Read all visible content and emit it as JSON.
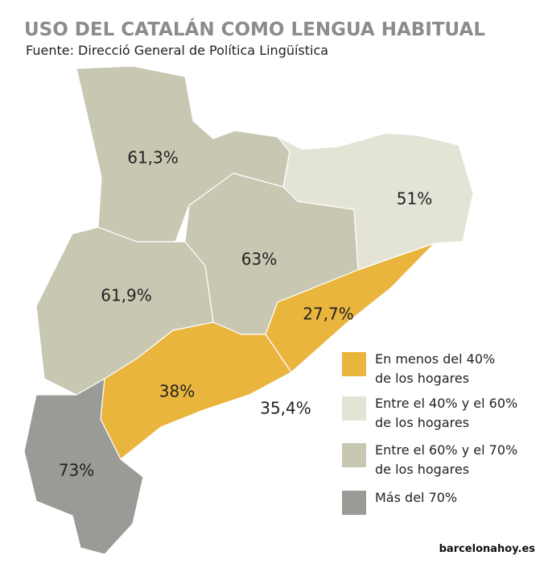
{
  "title": "USO DEL CATALÁN COMO LENGUA HABITUAL",
  "source": "Fuente: Direcció General de Política Lingüística",
  "regions": [
    {
      "label": "61,3%",
      "color": "#c8c7b2"
    },
    {
      "label": "51%",
      "color": "#e3e3d6"
    },
    {
      "label": "63%",
      "color": "#c8c7b2"
    },
    {
      "label": "61,9%",
      "color": "#c8c7b2"
    },
    {
      "label": "27,7%",
      "color": "#e9b53d"
    },
    {
      "label": "38%",
      "color": "#e9b53d"
    },
    {
      "label": "73%",
      "color": "#9a9a97"
    }
  ],
  "annotation": "35,4%",
  "legend": [
    {
      "lines": [
        "En menos del 40%",
        "de los hogares"
      ],
      "color": "#e9b53d"
    },
    {
      "lines": [
        "Entre el 40% y el 60%",
        "de los hogares"
      ],
      "color": "#e3e3d6"
    },
    {
      "lines": [
        "Entre el 60% y el 70%",
        "de los hogares"
      ],
      "color": "#c8c7b2"
    },
    {
      "lines": [
        "Más del 70%"
      ],
      "color": "#9a9a97"
    }
  ],
  "footer": "barcelonahoy.es"
}
